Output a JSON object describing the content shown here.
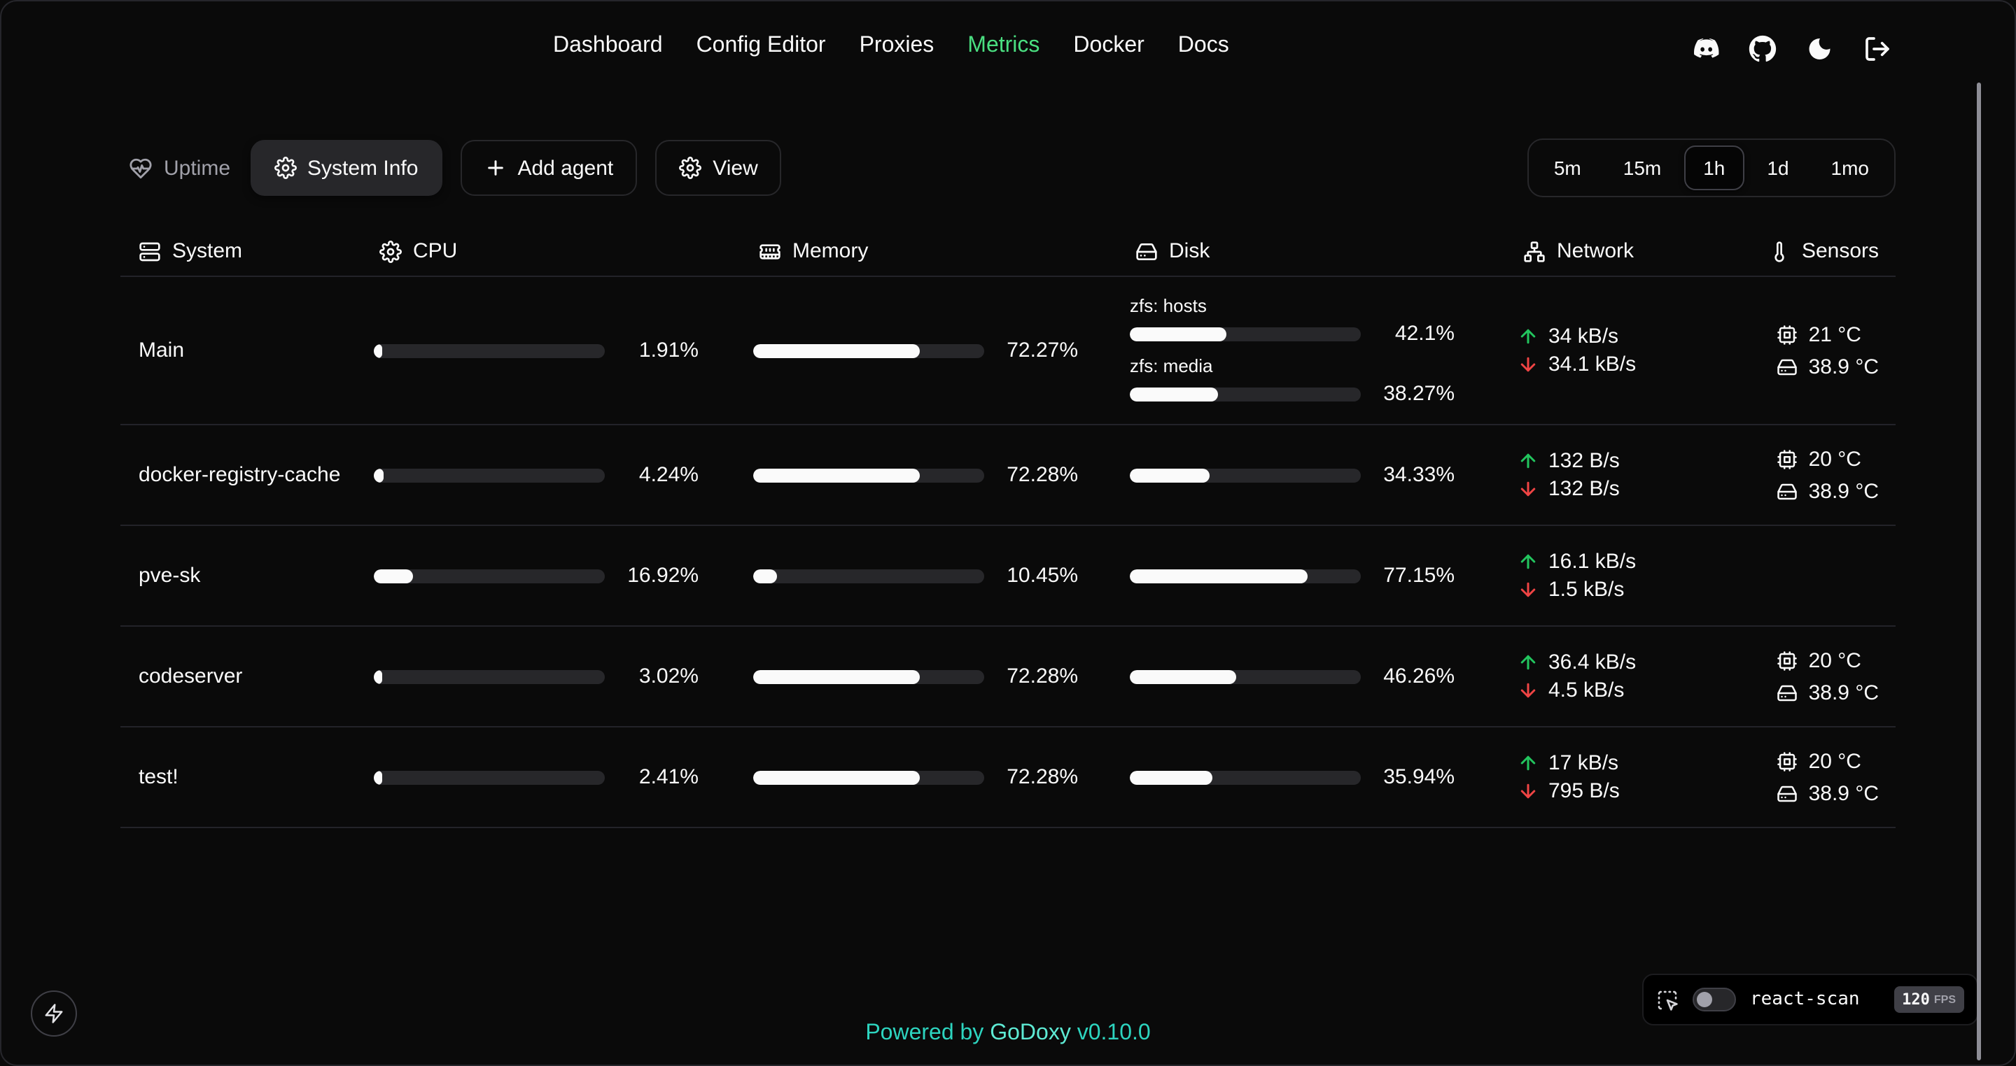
{
  "colors": {
    "bg": "#0a0a0a",
    "accent_green": "#4ade80",
    "teal": "#2dd4bf",
    "up": "#22c55e",
    "down": "#ef4444",
    "bar_fill": "#fafafa",
    "bar_track": "#27272a"
  },
  "nav": {
    "items": [
      {
        "label": "Dashboard",
        "active": false
      },
      {
        "label": "Config Editor",
        "active": false
      },
      {
        "label": "Proxies",
        "active": false
      },
      {
        "label": "Metrics",
        "active": true
      },
      {
        "label": "Docker",
        "active": false
      },
      {
        "label": "Docs",
        "active": false
      }
    ],
    "action_icons": [
      "discord-icon",
      "github-icon",
      "moon-icon",
      "logout-icon"
    ]
  },
  "toolbar": {
    "uptime_label": "Uptime",
    "system_info_label": "System Info",
    "add_agent_label": "Add agent",
    "view_label": "View",
    "time_ranges": [
      {
        "label": "5m",
        "active": false
      },
      {
        "label": "15m",
        "active": false
      },
      {
        "label": "1h",
        "active": true
      },
      {
        "label": "1d",
        "active": false
      },
      {
        "label": "1mo",
        "active": false
      }
    ]
  },
  "table": {
    "headers": [
      {
        "icon": "server-icon",
        "label": "System"
      },
      {
        "icon": "gear-icon",
        "label": "CPU"
      },
      {
        "icon": "memory-icon",
        "label": "Memory"
      },
      {
        "icon": "hard-drive-icon",
        "label": "Disk"
      },
      {
        "icon": "network-icon",
        "label": "Network"
      },
      {
        "icon": "thermometer-icon",
        "label": "Sensors"
      }
    ],
    "rows": [
      {
        "system": "Main",
        "cpu": "1.91%",
        "memory": "72.27%",
        "disks": [
          {
            "label": "zfs: hosts",
            "usage": "42.1%"
          },
          {
            "label": "zfs: media",
            "usage": "38.27%"
          }
        ],
        "net_up": "34 kB/s",
        "net_down": "34.1 kB/s",
        "sensors": [
          {
            "icon": "cpu-chip-icon",
            "value": "21 °C"
          },
          {
            "icon": "hard-drive-icon",
            "value": "38.9 °C"
          }
        ]
      },
      {
        "system": "docker-registry-cache",
        "cpu": "4.24%",
        "memory": "72.28%",
        "disks": [
          {
            "label": "",
            "usage": "34.33%"
          }
        ],
        "net_up": "132 B/s",
        "net_down": "132 B/s",
        "sensors": [
          {
            "icon": "cpu-chip-icon",
            "value": "20 °C"
          },
          {
            "icon": "hard-drive-icon",
            "value": "38.9 °C"
          }
        ]
      },
      {
        "system": "pve-sk",
        "cpu": "16.92%",
        "memory": "10.45%",
        "disks": [
          {
            "label": "",
            "usage": "77.15%"
          }
        ],
        "net_up": "16.1 kB/s",
        "net_down": "1.5 kB/s",
        "sensors": []
      },
      {
        "system": "codeserver",
        "cpu": "3.02%",
        "memory": "72.28%",
        "disks": [
          {
            "label": "",
            "usage": "46.26%"
          }
        ],
        "net_up": "36.4 kB/s",
        "net_down": "4.5 kB/s",
        "sensors": [
          {
            "icon": "cpu-chip-icon",
            "value": "20 °C"
          },
          {
            "icon": "hard-drive-icon",
            "value": "38.9 °C"
          }
        ]
      },
      {
        "system": "test!",
        "cpu": "2.41%",
        "memory": "72.28%",
        "disks": [
          {
            "label": "",
            "usage": "35.94%"
          }
        ],
        "net_up": "17 kB/s",
        "net_down": "795 B/s",
        "sensors": [
          {
            "icon": "cpu-chip-icon",
            "value": "20 °C"
          },
          {
            "icon": "hard-drive-icon",
            "value": "38.9 °C"
          }
        ]
      }
    ]
  },
  "footer": {
    "powered_by": "Powered by",
    "brand": "GoDoxy",
    "version": "v0.10.0"
  },
  "react_scan": {
    "label": "react-scan",
    "fps": "120",
    "fps_unit": "FPS"
  }
}
